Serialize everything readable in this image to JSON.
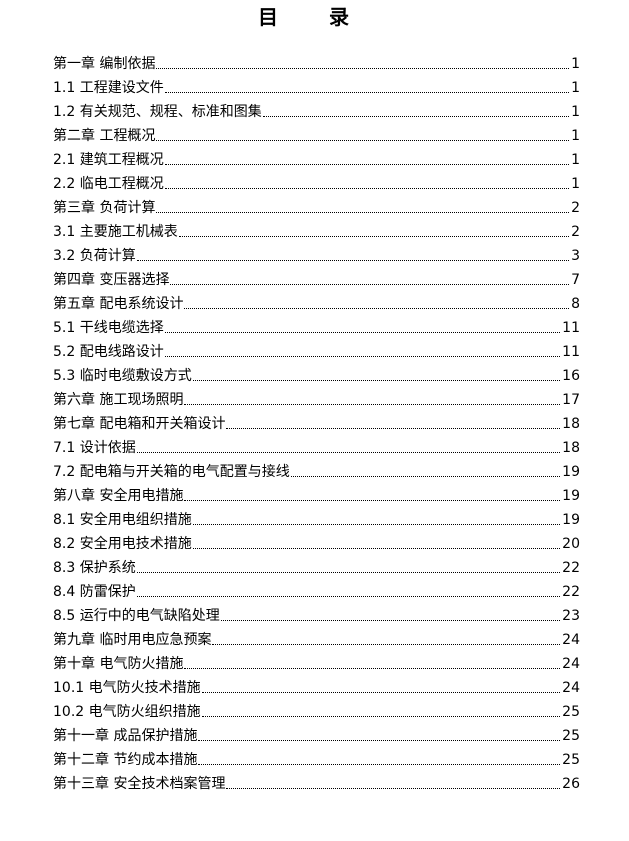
{
  "title": "目 录",
  "entries": [
    {
      "label": "第一章 编制依据",
      "page": "1"
    },
    {
      "label": "1.1 工程建设文件",
      "page": "1"
    },
    {
      "label": "1.2 有关规范、规程、标准和图集",
      "page": "1"
    },
    {
      "label": "第二章 工程概况",
      "page": "1"
    },
    {
      "label": "2.1 建筑工程概况",
      "page": "1"
    },
    {
      "label": "2.2 临电工程概况",
      "page": "1"
    },
    {
      "label": "第三章 负荷计算",
      "page": "2"
    },
    {
      "label": "3.1 主要施工机械表",
      "page": "2"
    },
    {
      "label": "3.2 负荷计算",
      "page": "3"
    },
    {
      "label": "第四章 变压器选择",
      "page": "7"
    },
    {
      "label": "第五章 配电系统设计",
      "page": "8"
    },
    {
      "label": "5.1 干线电缆选择",
      "page": "11"
    },
    {
      "label": "5.2 配电线路设计",
      "page": "11"
    },
    {
      "label": "5.3 临时电缆敷设方式",
      "page": "16"
    },
    {
      "label": "第六章 施工现场照明",
      "page": "17"
    },
    {
      "label": "第七章 配电箱和开关箱设计",
      "page": "18"
    },
    {
      "label": "7.1 设计依据",
      "page": "18"
    },
    {
      "label": "7.2 配电箱与开关箱的电气配置与接线",
      "page": "19"
    },
    {
      "label": "第八章 安全用电措施",
      "page": "19"
    },
    {
      "label": "8.1 安全用电组织措施",
      "page": "19"
    },
    {
      "label": "8.2 安全用电技术措施",
      "page": "20"
    },
    {
      "label": "8.3 保护系统",
      "page": "22"
    },
    {
      "label": "8.4 防雷保护",
      "page": "22"
    },
    {
      "label": "8.5 运行中的电气缺陷处理",
      "page": "23"
    },
    {
      "label": "第九章 临时用电应急预案",
      "page": "24"
    },
    {
      "label": "第十章 电气防火措施",
      "page": "24"
    },
    {
      "label": "10.1 电气防火技术措施",
      "page": "24"
    },
    {
      "label": "10.2 电气防火组织措施",
      "page": "25"
    },
    {
      "label": "第十一章 成品保护措施",
      "page": "25"
    },
    {
      "label": "第十二章 节约成本措施",
      "page": "25"
    },
    {
      "label": "第十三章 安全技术档案管理",
      "page": "26"
    }
  ]
}
